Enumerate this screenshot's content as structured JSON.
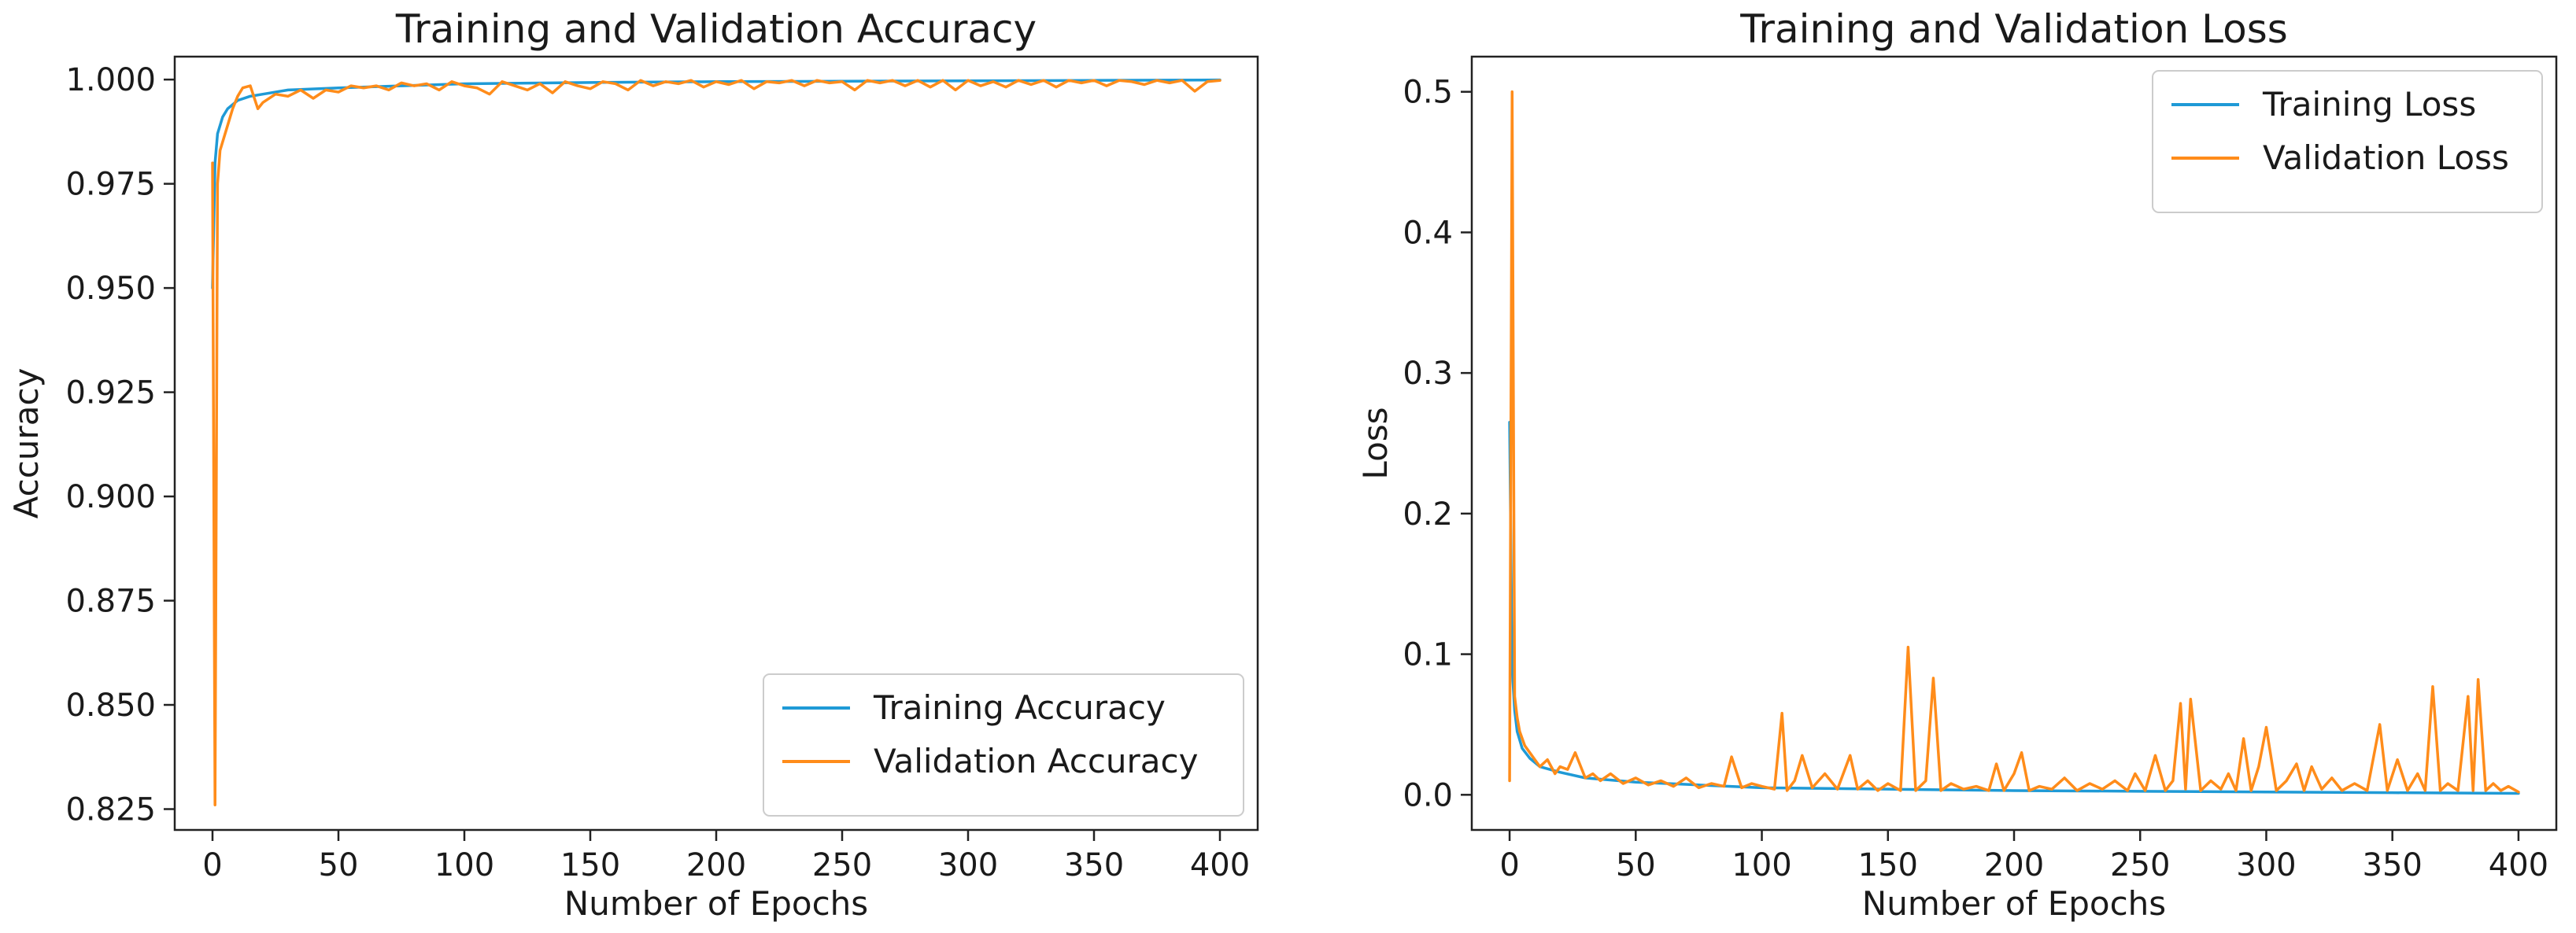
{
  "colors": {
    "training": "#1f9ad6",
    "validation": "#ff8c1a",
    "axes": "#222222",
    "legend_border": "#cccccc"
  },
  "chart_data": [
    {
      "type": "line",
      "title": "Training and Validation Accuracy",
      "xlabel": "Number of Epochs",
      "ylabel": "Accuracy",
      "xlim": [
        -15,
        415
      ],
      "ylim": [
        0.82,
        1.0055
      ],
      "xticks": [
        0,
        50,
        100,
        150,
        200,
        250,
        300,
        350,
        400
      ],
      "yticks": [
        0.825,
        0.85,
        0.875,
        0.9,
        0.925,
        0.95,
        0.975,
        1.0
      ],
      "ytick_labels": [
        "0.825",
        "0.850",
        "0.875",
        "0.900",
        "0.925",
        "0.950",
        "0.975",
        "1.000"
      ],
      "grid": false,
      "legend_position": "lower-right",
      "series": [
        {
          "name": "Training Accuracy",
          "color": "#1f9ad6",
          "x": [
            0,
            1,
            2,
            4,
            6,
            10,
            15,
            20,
            30,
            50,
            75,
            100,
            150,
            200,
            250,
            300,
            350,
            400
          ],
          "y": [
            0.95,
            0.98,
            0.987,
            0.991,
            0.993,
            0.995,
            0.996,
            0.9965,
            0.9975,
            0.998,
            0.9985,
            0.999,
            0.9993,
            0.9995,
            0.9996,
            0.9997,
            0.9998,
            0.9999
          ]
        },
        {
          "name": "Validation Accuracy",
          "color": "#ff8c1a",
          "x": [
            0,
            1,
            2,
            3,
            4,
            6,
            8,
            10,
            12,
            15,
            18,
            20,
            25,
            30,
            35,
            40,
            45,
            50,
            55,
            60,
            65,
            70,
            75,
            80,
            85,
            90,
            95,
            100,
            105,
            110,
            115,
            120,
            125,
            130,
            135,
            140,
            145,
            150,
            155,
            160,
            165,
            170,
            175,
            180,
            185,
            190,
            195,
            200,
            205,
            210,
            215,
            220,
            225,
            230,
            235,
            240,
            245,
            250,
            255,
            260,
            265,
            270,
            275,
            280,
            285,
            290,
            295,
            300,
            305,
            310,
            315,
            320,
            325,
            330,
            335,
            340,
            345,
            350,
            355,
            360,
            365,
            370,
            375,
            380,
            385,
            390,
            395,
            400
          ],
          "y": [
            0.98,
            0.826,
            0.975,
            0.983,
            0.985,
            0.989,
            0.993,
            0.996,
            0.998,
            0.9985,
            0.993,
            0.9945,
            0.9965,
            0.996,
            0.9975,
            0.9955,
            0.9975,
            0.997,
            0.9985,
            0.998,
            0.9985,
            0.9975,
            0.9992,
            0.9985,
            0.999,
            0.9975,
            0.9995,
            0.9985,
            0.998,
            0.9965,
            0.9995,
            0.9985,
            0.9975,
            0.999,
            0.9968,
            0.9995,
            0.9985,
            0.9978,
            0.9995,
            0.999,
            0.9975,
            0.9998,
            0.9985,
            0.9995,
            0.999,
            0.9998,
            0.9982,
            0.9995,
            0.9988,
            0.9998,
            0.9978,
            0.9995,
            0.9992,
            0.9998,
            0.9985,
            0.9998,
            0.9992,
            0.9995,
            0.9975,
            0.9998,
            0.9992,
            0.9998,
            0.9985,
            0.9998,
            0.9982,
            0.9998,
            0.9975,
            0.9998,
            0.9985,
            0.9995,
            0.9982,
            0.9998,
            0.9988,
            0.9998,
            0.9982,
            0.9998,
            0.9992,
            0.9998,
            0.9985,
            0.9998,
            0.9995,
            0.9988,
            0.9998,
            0.9992,
            0.9998,
            0.9972,
            0.9995,
            0.9998
          ]
        }
      ]
    },
    {
      "type": "line",
      "title": "Training and Validation Loss",
      "xlabel": "Number of Epochs",
      "ylabel": "Loss",
      "xlim": [
        -15,
        415
      ],
      "ylim": [
        -0.025,
        0.525
      ],
      "xticks": [
        0,
        50,
        100,
        150,
        200,
        250,
        300,
        350,
        400
      ],
      "yticks": [
        0.0,
        0.1,
        0.2,
        0.3,
        0.4,
        0.5
      ],
      "ytick_labels": [
        "0.0",
        "0.1",
        "0.2",
        "0.3",
        "0.4",
        "0.5"
      ],
      "grid": false,
      "legend_position": "upper-right",
      "series": [
        {
          "name": "Training Loss",
          "color": "#1f9ad6",
          "x": [
            0,
            1,
            2,
            3,
            5,
            8,
            12,
            20,
            30,
            50,
            75,
            100,
            150,
            200,
            250,
            300,
            350,
            400
          ],
          "y": [
            0.265,
            0.09,
            0.06,
            0.045,
            0.033,
            0.026,
            0.02,
            0.016,
            0.012,
            0.009,
            0.007,
            0.005,
            0.004,
            0.003,
            0.0025,
            0.002,
            0.0015,
            0.001
          ]
        },
        {
          "name": "Validation Loss",
          "color": "#ff8c1a",
          "x": [
            0,
            1,
            2,
            3,
            4,
            6,
            8,
            10,
            12,
            15,
            18,
            20,
            23,
            26,
            30,
            33,
            36,
            40,
            45,
            50,
            55,
            60,
            65,
            70,
            75,
            80,
            85,
            88,
            92,
            96,
            100,
            105,
            108,
            110,
            113,
            116,
            120,
            125,
            130,
            135,
            138,
            142,
            146,
            150,
            155,
            158,
            161,
            165,
            168,
            171,
            175,
            180,
            185,
            190,
            193,
            196,
            200,
            203,
            206,
            210,
            215,
            220,
            225,
            230,
            235,
            240,
            245,
            248,
            252,
            256,
            260,
            263,
            266,
            268,
            270,
            274,
            278,
            282,
            285,
            288,
            291,
            294,
            297,
            300,
            304,
            308,
            312,
            315,
            318,
            322,
            326,
            330,
            335,
            340,
            345,
            348,
            352,
            356,
            360,
            363,
            366,
            369,
            372,
            376,
            380,
            382,
            384,
            387,
            390,
            393,
            396,
            400
          ],
          "y": [
            0.01,
            0.5,
            0.07,
            0.055,
            0.045,
            0.035,
            0.03,
            0.025,
            0.02,
            0.025,
            0.015,
            0.02,
            0.018,
            0.03,
            0.012,
            0.015,
            0.01,
            0.015,
            0.008,
            0.012,
            0.007,
            0.01,
            0.006,
            0.012,
            0.005,
            0.008,
            0.006,
            0.027,
            0.005,
            0.008,
            0.006,
            0.004,
            0.058,
            0.003,
            0.01,
            0.028,
            0.005,
            0.015,
            0.004,
            0.028,
            0.004,
            0.01,
            0.003,
            0.008,
            0.003,
            0.105,
            0.003,
            0.01,
            0.083,
            0.003,
            0.008,
            0.004,
            0.006,
            0.003,
            0.022,
            0.003,
            0.015,
            0.03,
            0.003,
            0.006,
            0.004,
            0.012,
            0.003,
            0.008,
            0.004,
            0.01,
            0.003,
            0.015,
            0.003,
            0.028,
            0.003,
            0.01,
            0.065,
            0.004,
            0.068,
            0.003,
            0.01,
            0.004,
            0.015,
            0.003,
            0.04,
            0.003,
            0.02,
            0.048,
            0.003,
            0.01,
            0.022,
            0.003,
            0.02,
            0.004,
            0.012,
            0.003,
            0.008,
            0.003,
            0.05,
            0.003,
            0.025,
            0.003,
            0.015,
            0.003,
            0.077,
            0.003,
            0.008,
            0.003,
            0.07,
            0.003,
            0.082,
            0.003,
            0.008,
            0.003,
            0.006,
            0.002
          ]
        }
      ]
    }
  ]
}
